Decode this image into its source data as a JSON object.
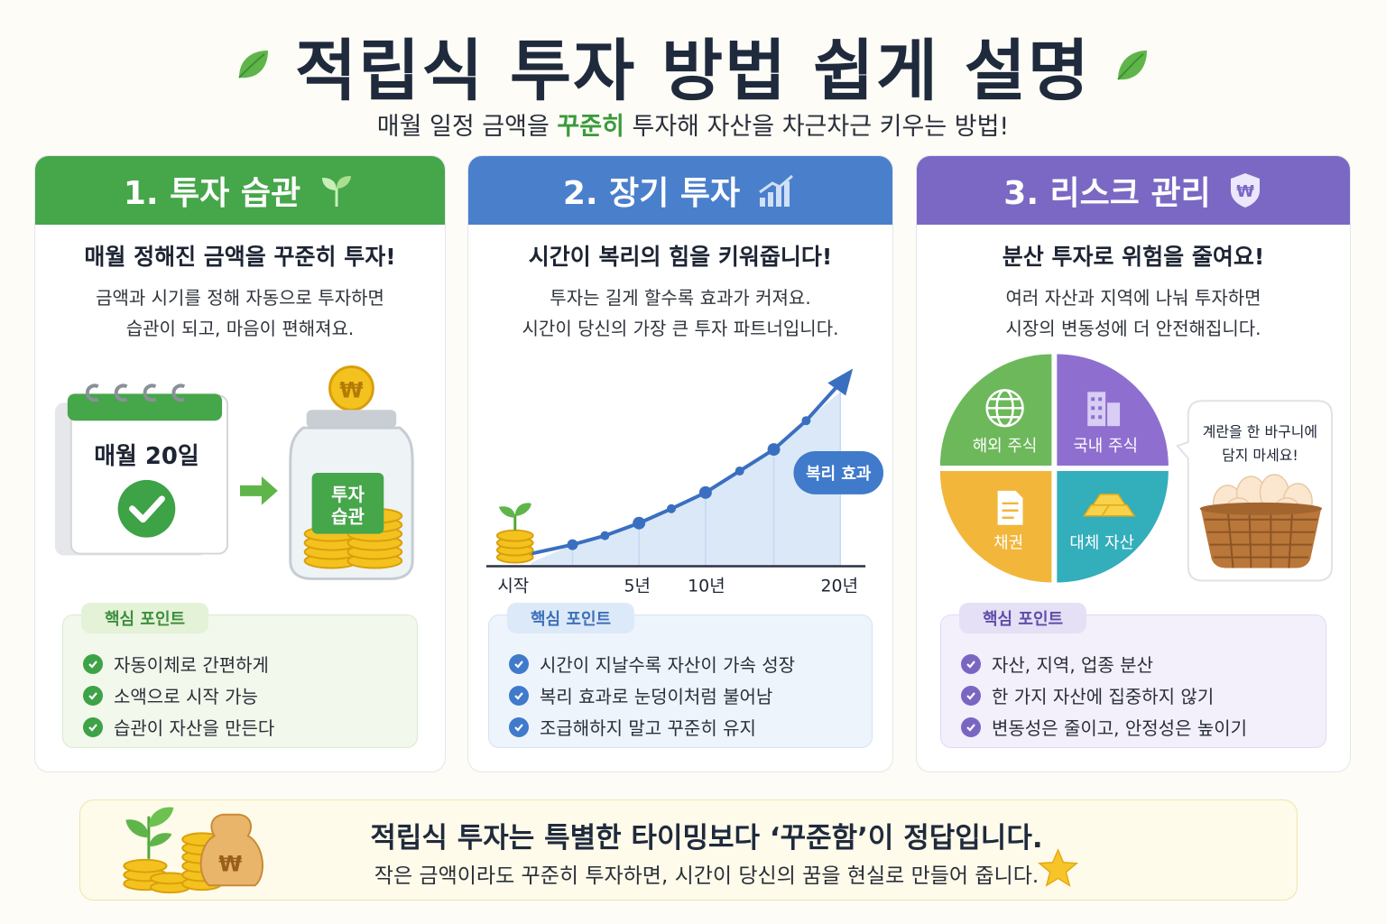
{
  "header": {
    "title": "적립식 투자 방법 쉽게 설명",
    "subtitle_pre": "매월 일정 금액을 ",
    "subtitle_highlight": "꾸준히",
    "subtitle_post": " 투자해 자산을 차근차근 키우는 방법!"
  },
  "cards": [
    {
      "title": "1. 투자 습관",
      "lead": "매월 정해진 금액을 꾸준히 투자!",
      "desc": [
        "금액과 시기를 정해 자동으로 투자하면",
        "습관이 되고, 마음이 편해져요."
      ],
      "calendar_label": "매월 20일",
      "jar_label": [
        "투자",
        "습관"
      ],
      "coin_symbol": "₩",
      "points_tag": "핵심 포인트",
      "points": [
        "자동이체로 간편하게",
        "소액으로 시작 가능",
        "습관이 자산을 만든다"
      ]
    },
    {
      "title": "2. 장기 투자",
      "lead": "시간이 복리의 힘을 키워줍니다!",
      "desc": [
        "투자는 길게 할수록 효과가 커져요.",
        "시간이 당신의 가장 큰 투자 파트너입니다."
      ],
      "chart_badge": "복리 효과",
      "axis_labels": [
        "시작",
        "5년",
        "10년",
        "20년"
      ],
      "points_tag": "핵심 포인트",
      "points": [
        "시간이 지날수록 자산이 가속 성장",
        "복리 효과로 눈덩이처럼 불어남",
        "조급해하지 말고 꾸준히 유지"
      ]
    },
    {
      "title": "3. 리스크 관리",
      "lead": "분산 투자로 위험을 줄여요!",
      "desc": [
        "여러 자산과 지역에 나눠 투자하면",
        "시장의 변동성에 더 안전해집니다."
      ],
      "pie_labels": [
        "해외 주식",
        "국내 주식",
        "채권",
        "대체 자산"
      ],
      "bubble": [
        "계란을 한 바구니에",
        "담지 마세요!"
      ],
      "shield_symbol": "₩",
      "points_tag": "핵심 포인트",
      "points": [
        "자산, 지역, 업종 분산",
        "한 가지 자산에 집중하지 않기",
        "변동성은 줄이고, 안정성은 높이기"
      ]
    }
  ],
  "footer": {
    "title": "적립식 투자는 특별한 타이밍보다 ‘꾸준함’이 정답입니다.",
    "subtitle": "작은 금액이라도 꾸준히 투자하면, 시간이 당신의 꿈을 현실로 만들어 줍니다.",
    "bag_symbol": "₩"
  },
  "colors": {
    "green": "#46a64a",
    "blue": "#4a7fcc",
    "purple": "#7b68c4",
    "highlight": "#3a9a3a"
  },
  "icons": [
    "leaf-icon",
    "sprout-icon",
    "bar-chart-icon",
    "shield-icon",
    "check-icon",
    "globe-icon",
    "building-icon",
    "document-icon",
    "gold-bar-icon",
    "star-icon"
  ]
}
